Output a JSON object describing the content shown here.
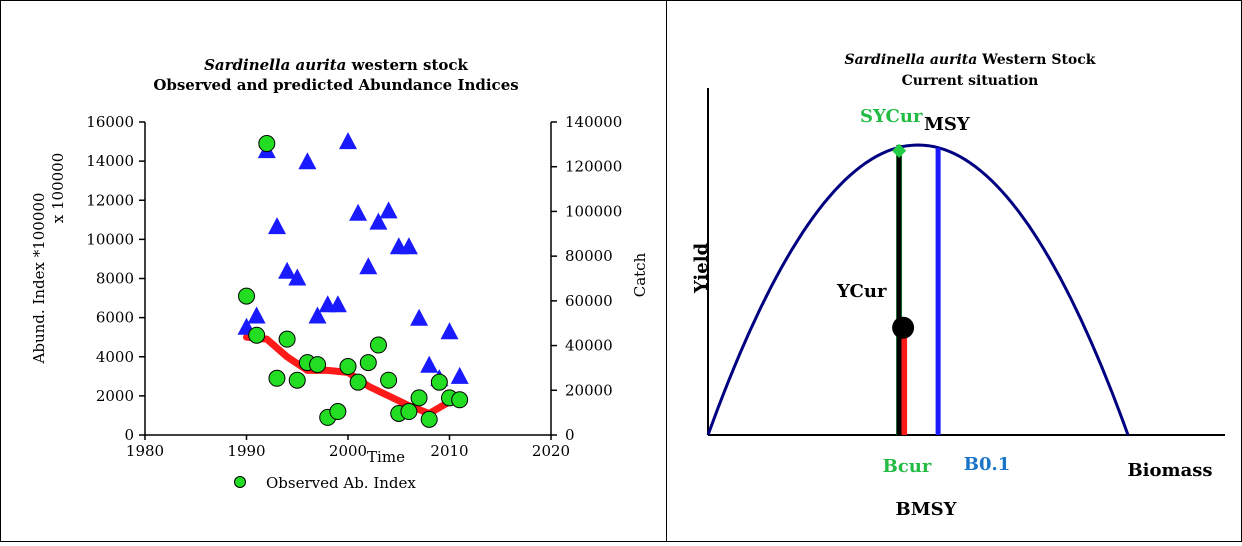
{
  "chart_data": [
    {
      "type": "scatter",
      "title_italic": "Sardinella aurita",
      "title_rest": " western stock",
      "subtitle": "Observed and predicted Abundance Indices",
      "xlabel": "Time",
      "ylabel_left": "Abund. Index *100000",
      "ylabel_left_multiplier": "x 100000",
      "ylabel_right": "Catch",
      "xlim": [
        1980,
        2020
      ],
      "xticks": [
        "1980",
        "1990",
        "2000",
        "2010",
        "2020"
      ],
      "ylim_left": [
        0,
        16000
      ],
      "yticks_left": [
        "0",
        "2000",
        "4000",
        "6000",
        "8000",
        "10000",
        "12000",
        "14000",
        "16000"
      ],
      "ylim_right": [
        0,
        140000
      ],
      "yticks_right": [
        "0",
        "20000",
        "40000",
        "60000",
        "80000",
        "100000",
        "120000",
        "140000"
      ],
      "legend": {
        "label": "Observed Ab. Index",
        "placement": "bottom"
      },
      "series": [
        {
          "name": "Observed Ab. Index",
          "axis": "left",
          "marker": "circle",
          "color": "#22dd22",
          "points": [
            [
              1990,
              7100
            ],
            [
              1991,
              5100
            ],
            [
              1992,
              14900
            ],
            [
              1993,
              2900
            ],
            [
              1994,
              4900
            ],
            [
              1995,
              2800
            ],
            [
              1996,
              3700
            ],
            [
              1997,
              3600
            ],
            [
              1998,
              900
            ],
            [
              1999,
              1200
            ],
            [
              2000,
              3500
            ],
            [
              2001,
              2700
            ],
            [
              2002,
              3700
            ],
            [
              2003,
              4600
            ],
            [
              2004,
              2800
            ],
            [
              2005,
              1100
            ],
            [
              2006,
              1200
            ],
            [
              2007,
              1900
            ],
            [
              2008,
              800
            ],
            [
              2009,
              2700
            ],
            [
              2010,
              1900
            ],
            [
              2011,
              1800
            ]
          ]
        },
        {
          "axis": "right",
          "marker": "triangle",
          "color": "#1a1aff",
          "points": [
            [
              1990,
              48000
            ],
            [
              1991,
              53000
            ],
            [
              1992,
              127000
            ],
            [
              1993,
              93000
            ],
            [
              1994,
              73000
            ],
            [
              1995,
              70000
            ],
            [
              1996,
              122000
            ],
            [
              1997,
              53000
            ],
            [
              1998,
              58000
            ],
            [
              1999,
              58000
            ],
            [
              2000,
              131000
            ],
            [
              2001,
              99000
            ],
            [
              2002,
              75000
            ],
            [
              2003,
              95000
            ],
            [
              2004,
              100000
            ],
            [
              2005,
              84000
            ],
            [
              2006,
              84000
            ],
            [
              2007,
              52000
            ],
            [
              2008,
              31000
            ],
            [
              2009,
              25000
            ],
            [
              2010,
              46000
            ],
            [
              2011,
              26000
            ]
          ]
        },
        {
          "axis": "left",
          "marker": "line",
          "color": "#ff1a1a",
          "points": [
            [
              1990,
              5000
            ],
            [
              1992,
              4900
            ],
            [
              1994,
              4000
            ],
            [
              1996,
              3300
            ],
            [
              1998,
              3300
            ],
            [
              2000,
              3200
            ],
            [
              2002,
              2500
            ],
            [
              2004,
              2000
            ],
            [
              2006,
              1500
            ],
            [
              2008,
              1100
            ],
            [
              2010,
              1700
            ]
          ]
        }
      ]
    },
    {
      "type": "line",
      "title_italic": "Sardinella aurita",
      "title_rest": "  Western Stock",
      "subtitle": "Current situation",
      "xlabel": "Biomass",
      "ylabel": "Yield",
      "curve_color": "#000080",
      "markers": [
        {
          "label": "SYCur",
          "color": "#22cc44",
          "biomass_frac": 0.455,
          "yield_frac": 0.98,
          "label_pos": "top"
        },
        {
          "label": "MSY",
          "color": "#000000",
          "biomass_frac": 0.5,
          "yield_frac": 1.0,
          "label_pos": "top"
        },
        {
          "label": "B0.1",
          "color": "#1a1aff",
          "biomass_frac": 0.555,
          "yield_frac": 0.99,
          "label_pos": "bottom"
        },
        {
          "label": "YCur",
          "color": "#ff1a1a",
          "biomass_frac": 0.465,
          "yield_frac": 0.37,
          "label_pos": "point"
        }
      ],
      "bottom_labels": {
        "bcur": "Bcur",
        "b01": "B0.1",
        "bmsy": "BMSY",
        "biomass": "Biomass"
      }
    }
  ]
}
